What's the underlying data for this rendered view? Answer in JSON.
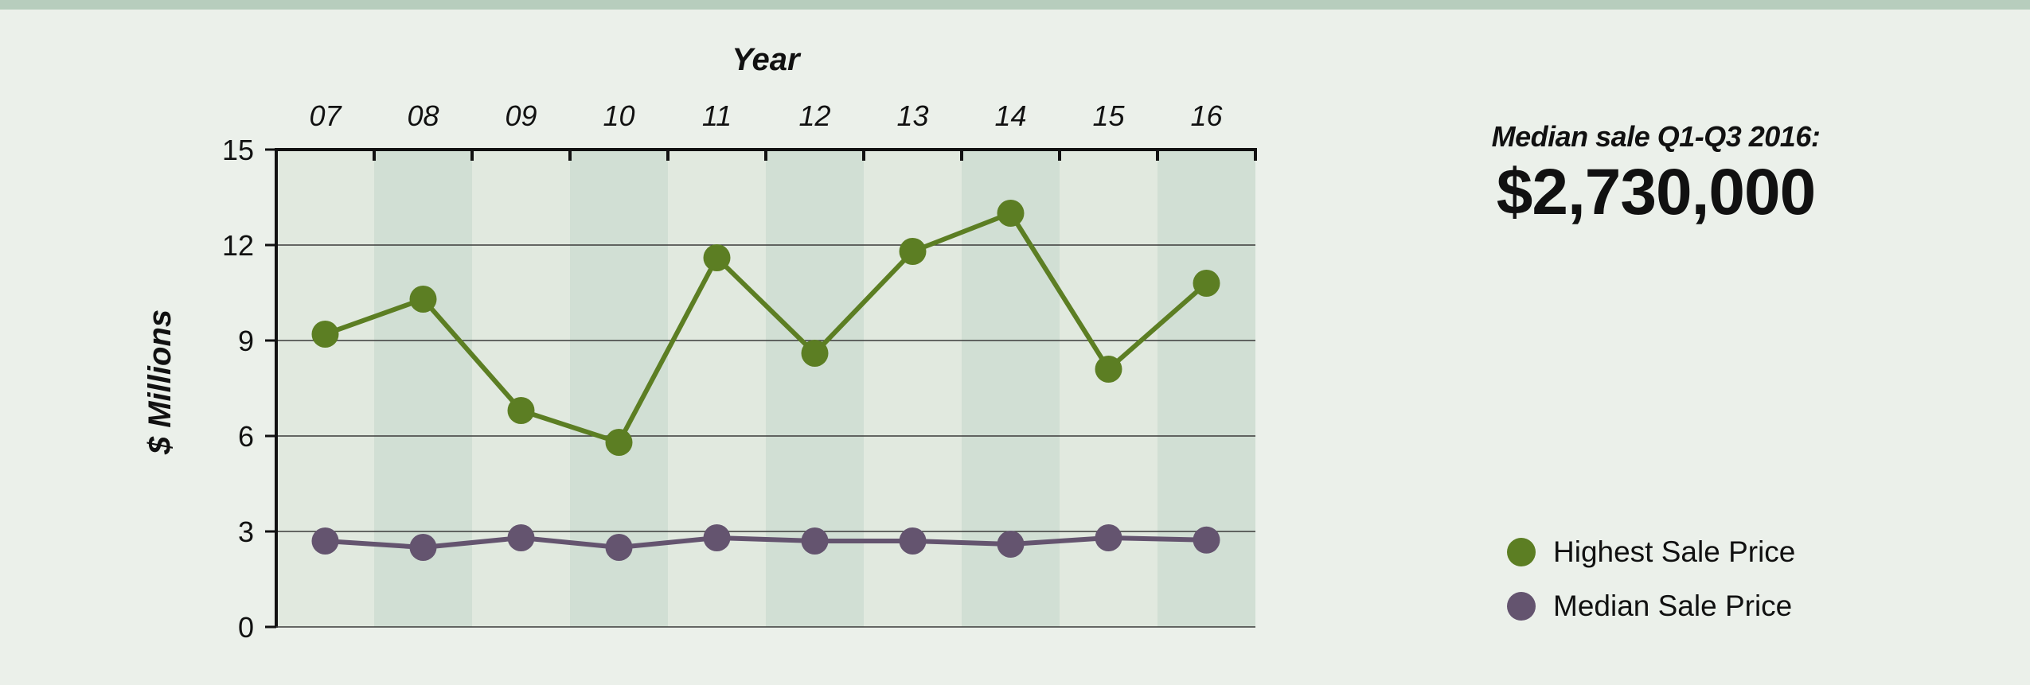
{
  "colors": {
    "background": "#ebf0ea",
    "top_bar": "#b7cdbd",
    "band_light": "#e1e9df",
    "band_dark": "#d1dfd4",
    "highest_series": "#5c7e23",
    "median_series": "#64546f"
  },
  "callout": {
    "label": "Median sale Q1-Q3 2016:",
    "value": "$2,730,000"
  },
  "legend": {
    "items": [
      {
        "label": "Highest Sale Price",
        "color": "#5c7e23"
      },
      {
        "label": "Median Sale Price",
        "color": "#64546f"
      }
    ]
  },
  "chart_data": {
    "type": "line",
    "title": "",
    "xlabel": "Year",
    "ylabel": "$ Millions",
    "categories": [
      "07",
      "08",
      "09",
      "10",
      "11",
      "12",
      "13",
      "14",
      "15",
      "16"
    ],
    "ylim": [
      0,
      15
    ],
    "yticks": [
      "0",
      "3",
      "6",
      "9",
      "12",
      "15"
    ],
    "x_axis_position": "top",
    "grid": true,
    "legend_position": "bottom-right",
    "series": [
      {
        "name": "Highest Sale Price",
        "color": "#5c7e23",
        "values": [
          9.2,
          10.3,
          6.8,
          5.8,
          11.6,
          8.6,
          11.8,
          13.0,
          8.1,
          10.8
        ]
      },
      {
        "name": "Median Sale Price",
        "color": "#64546f",
        "values": [
          2.7,
          2.5,
          2.8,
          2.5,
          2.8,
          2.7,
          2.7,
          2.6,
          2.8,
          2.73
        ]
      }
    ]
  }
}
